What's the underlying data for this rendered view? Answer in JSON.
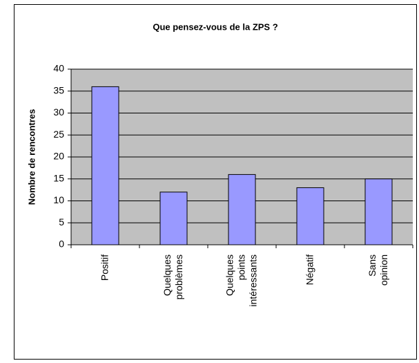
{
  "chart_data": {
    "type": "bar",
    "title": "Que pensez-vous de la ZPS ?",
    "y_label": "Nombre de rencontres",
    "categories": [
      "Positif",
      "Quelques problèmes",
      "Quelques points intéressants",
      "Négatif",
      "Sans opinion"
    ],
    "values": [
      36,
      12,
      16,
      13,
      15
    ],
    "color": "#9999ff",
    "ylim": [
      0,
      40
    ],
    "yticks": [
      0,
      5,
      10,
      15,
      20,
      25,
      30,
      35,
      40
    ],
    "grid": true
  }
}
